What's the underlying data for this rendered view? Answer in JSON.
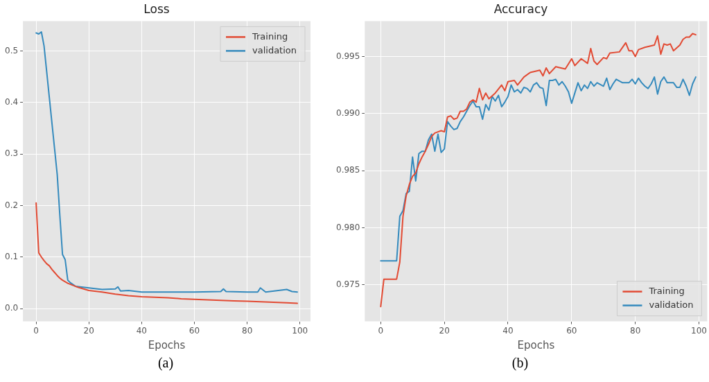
{
  "chart_data": [
    {
      "type": "line",
      "title": "Loss",
      "xlabel": "Epochs",
      "annotations": [
        "(a)"
      ],
      "xlim": [
        -5,
        104
      ],
      "xticks": [
        0,
        20,
        40,
        60,
        80,
        100
      ],
      "ylim": [
        -0.025,
        0.558
      ],
      "yticks": [
        {
          "value": 0,
          "label": "0.0"
        },
        0.1,
        0.2,
        0.3,
        0.4,
        0.5
      ],
      "grid": true,
      "legend": "top right",
      "marker": "none",
      "line_style": "solid",
      "series": [
        {
          "name": "Training",
          "color": "#e24a33",
          "x": [
            0,
            1,
            2,
            3,
            4,
            5,
            6,
            7,
            8,
            9,
            10,
            12,
            14,
            16,
            18,
            20,
            25,
            30,
            35,
            40,
            45,
            50,
            55,
            60,
            65,
            70,
            75,
            80,
            85,
            90,
            95,
            99
          ],
          "values": [
            0.205,
            0.108,
            0.1,
            0.093,
            0.087,
            0.083,
            0.076,
            0.07,
            0.064,
            0.059,
            0.055,
            0.049,
            0.045,
            0.041,
            0.038,
            0.035,
            0.032,
            0.028,
            0.025,
            0.023,
            0.022,
            0.021,
            0.019,
            0.018,
            0.017,
            0.016,
            0.015,
            0.014,
            0.013,
            0.012,
            0.011,
            0.01
          ]
        },
        {
          "name": "validation",
          "color": "#348abd",
          "x": [
            0,
            1,
            2,
            3,
            4,
            5,
            6,
            7,
            8,
            9,
            10,
            11,
            12,
            13,
            15,
            20,
            25,
            30,
            31,
            32,
            35,
            40,
            50,
            60,
            70,
            71,
            72,
            80,
            84,
            85,
            87,
            95,
            97,
            99
          ],
          "values": [
            0.535,
            0.533,
            0.537,
            0.51,
            0.46,
            0.41,
            0.36,
            0.31,
            0.26,
            0.18,
            0.105,
            0.095,
            0.055,
            0.05,
            0.043,
            0.04,
            0.037,
            0.038,
            0.042,
            0.034,
            0.035,
            0.032,
            0.032,
            0.032,
            0.033,
            0.038,
            0.033,
            0.032,
            0.032,
            0.04,
            0.032,
            0.037,
            0.033,
            0.032
          ]
        }
      ]
    },
    {
      "type": "line",
      "title": "Accuracy",
      "xlabel": "Epochs",
      "annotations": [
        "(b)"
      ],
      "xlim": [
        -5,
        102.6
      ],
      "xticks": [
        0,
        20,
        40,
        60,
        80,
        100
      ],
      "ylim": [
        0.9718,
        0.9981
      ],
      "yticks": [
        0.975,
        {
          "value": 0.98,
          "label": "0.980"
        },
        0.985,
        {
          "value": 0.99,
          "label": "0.990"
        },
        0.995
      ],
      "grid": true,
      "legend": "bottom right",
      "marker": "none",
      "line_style": "solid",
      "series": [
        {
          "name": "Training",
          "color": "#e24a33",
          "x": [
            0,
            1,
            5,
            6,
            7,
            8,
            9,
            10,
            11,
            12,
            13,
            14,
            15,
            16,
            17,
            18,
            19,
            20,
            21,
            22,
            23,
            24,
            25,
            26,
            27,
            28,
            29,
            30,
            31,
            32,
            33,
            34,
            36,
            38,
            39,
            40,
            42,
            43,
            45,
            47,
            50,
            51,
            52,
            53,
            55,
            58,
            60,
            61,
            63,
            65,
            66,
            67,
            68,
            70,
            71,
            72,
            75,
            77,
            78,
            79,
            80,
            81,
            83,
            86,
            87,
            88,
            89,
            90,
            91,
            92,
            94,
            95,
            96,
            97,
            98,
            99
          ],
          "values": [
            0.9731,
            0.9755,
            0.9755,
            0.977,
            0.981,
            0.9828,
            0.9838,
            0.9845,
            0.9848,
            0.9856,
            0.9862,
            0.9867,
            0.9873,
            0.988,
            0.9883,
            0.9884,
            0.9885,
            0.9884,
            0.9897,
            0.9898,
            0.9895,
            0.9896,
            0.9902,
            0.9902,
            0.9904,
            0.991,
            0.9912,
            0.991,
            0.9922,
            0.9912,
            0.9918,
            0.9913,
            0.9918,
            0.9925,
            0.992,
            0.9928,
            0.9929,
            0.9925,
            0.9932,
            0.9936,
            0.9938,
            0.9933,
            0.994,
            0.9935,
            0.9941,
            0.9939,
            0.9948,
            0.9942,
            0.9948,
            0.9944,
            0.9957,
            0.9946,
            0.9943,
            0.9949,
            0.9948,
            0.9953,
            0.9954,
            0.9962,
            0.9955,
            0.9955,
            0.995,
            0.9956,
            0.9958,
            0.996,
            0.9968,
            0.9952,
            0.9961,
            0.996,
            0.9961,
            0.9955,
            0.996,
            0.9965,
            0.9967,
            0.9967,
            0.997,
            0.9969
          ]
        },
        {
          "name": "validation",
          "color": "#348abd",
          "x": [
            0,
            5,
            6,
            7,
            8,
            9,
            10,
            11,
            12,
            13,
            14,
            15,
            16,
            17,
            18,
            19,
            20,
            21,
            22,
            23,
            24,
            25,
            26,
            27,
            28,
            29,
            30,
            31,
            32,
            33,
            34,
            35,
            36,
            37,
            38,
            39,
            40,
            41,
            42,
            43,
            44,
            45,
            46,
            47,
            48,
            49,
            50,
            51,
            52,
            53,
            54,
            55,
            56,
            57,
            58,
            59,
            60,
            61,
            62,
            63,
            64,
            65,
            66,
            67,
            68,
            70,
            71,
            72,
            73,
            74,
            76,
            78,
            79,
            80,
            81,
            82,
            83,
            84,
            85,
            86,
            87,
            88,
            89,
            90,
            92,
            93,
            94,
            95,
            96,
            97,
            98,
            99
          ],
          "values": [
            0.9771,
            0.9771,
            0.981,
            0.9815,
            0.983,
            0.9832,
            0.9862,
            0.9841,
            0.9865,
            0.9867,
            0.9867,
            0.9877,
            0.9882,
            0.9867,
            0.9882,
            0.9866,
            0.9869,
            0.9893,
            0.9889,
            0.9886,
            0.9887,
            0.9893,
            0.9897,
            0.9902,
            0.9907,
            0.9911,
            0.9906,
            0.9906,
            0.9895,
            0.9908,
            0.9903,
            0.9915,
            0.9911,
            0.9916,
            0.9906,
            0.991,
            0.9915,
            0.9925,
            0.9919,
            0.9921,
            0.9918,
            0.9923,
            0.9922,
            0.9919,
            0.9925,
            0.9927,
            0.9923,
            0.9922,
            0.9907,
            0.9929,
            0.9929,
            0.993,
            0.9925,
            0.9928,
            0.9924,
            0.9919,
            0.9909,
            0.9918,
            0.9927,
            0.992,
            0.9925,
            0.9922,
            0.9928,
            0.9924,
            0.9927,
            0.9924,
            0.9931,
            0.9921,
            0.9926,
            0.993,
            0.9927,
            0.9927,
            0.993,
            0.9926,
            0.9931,
            0.9927,
            0.9924,
            0.9922,
            0.9926,
            0.9932,
            0.9917,
            0.9928,
            0.9932,
            0.9927,
            0.9927,
            0.9923,
            0.9923,
            0.993,
            0.9924,
            0.9916,
            0.9926,
            0.9932
          ]
        }
      ]
    }
  ]
}
